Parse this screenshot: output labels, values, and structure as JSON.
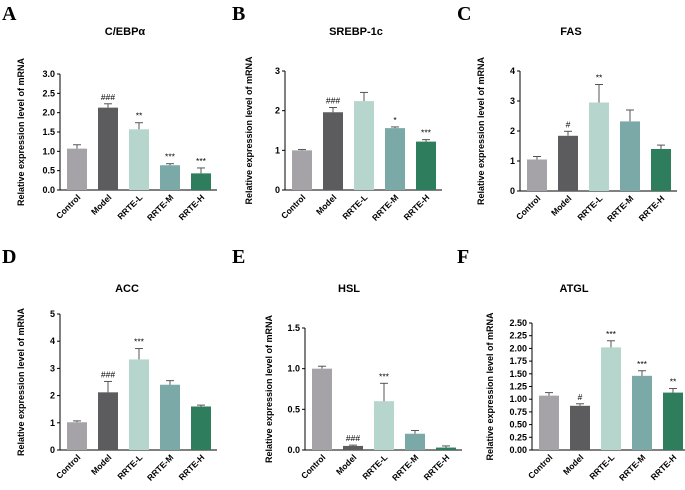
{
  "colors": {
    "bars": [
      "#a5a3a8",
      "#5c5c5e",
      "#b5d5cd",
      "#7aa9a8",
      "#2e7d5c"
    ],
    "axis": "#000000",
    "error": "#555555"
  },
  "chart_data": [
    {
      "type": "bar",
      "letter": "A",
      "title": "C/EBPα",
      "ylabel": "Relative expression level of mRNA",
      "categories": [
        "Control",
        "Model",
        "RRTE-L",
        "RRTE-M",
        "RRTE-H"
      ],
      "values": [
        1.07,
        2.13,
        1.57,
        0.64,
        0.43
      ],
      "errors": [
        0.1,
        0.1,
        0.17,
        0.04,
        0.14
      ],
      "annotations": [
        "",
        "###",
        "**",
        "***",
        "***"
      ],
      "ylim": [
        0,
        3.0
      ],
      "yticks": [
        "0.0",
        "0.5",
        "1.0",
        "1.5",
        "2.0",
        "2.5",
        "3.0"
      ]
    },
    {
      "type": "bar",
      "letter": "B",
      "title": "SREBP-1c",
      "ylabel": "Relative expression level of mRNA",
      "categories": [
        "Control",
        "Model",
        "RRTE-L",
        "RRTE-M",
        "RRTE-H"
      ],
      "values": [
        1.0,
        1.96,
        2.24,
        1.56,
        1.22
      ],
      "errors": [
        0.02,
        0.12,
        0.22,
        0.03,
        0.05
      ],
      "annotations": [
        "",
        "###",
        "",
        "*",
        "***"
      ],
      "ylim": [
        0,
        3
      ],
      "yticks": [
        "0",
        "1",
        "2",
        "3"
      ]
    },
    {
      "type": "bar",
      "letter": "C",
      "title": "FAS",
      "ylabel": "Relative expression level of mRNA",
      "categories": [
        "Control",
        "Model",
        "RRTE-L",
        "RRTE-M",
        "RRTE-H"
      ],
      "values": [
        1.05,
        1.84,
        2.95,
        2.32,
        1.4
      ],
      "errors": [
        0.1,
        0.15,
        0.6,
        0.38,
        0.13
      ],
      "annotations": [
        "",
        "#",
        "**",
        "",
        ""
      ],
      "ylim": [
        0,
        4
      ],
      "yticks": [
        "0",
        "1",
        "2",
        "3",
        "4"
      ]
    },
    {
      "type": "bar",
      "letter": "D",
      "title": "ACC",
      "ylabel": "Relative expression level of mRNA",
      "categories": [
        "Control",
        "Model",
        "RRTE-L",
        "RRTE-M",
        "RRTE-H"
      ],
      "values": [
        1.02,
        2.12,
        3.33,
        2.4,
        1.6
      ],
      "errors": [
        0.05,
        0.4,
        0.4,
        0.15,
        0.05
      ],
      "annotations": [
        "",
        "###",
        "***",
        "",
        ""
      ],
      "ylim": [
        0,
        5
      ],
      "yticks": [
        "0",
        "1",
        "2",
        "3",
        "4",
        "5"
      ]
    },
    {
      "type": "bar",
      "letter": "E",
      "title": "HSL",
      "ylabel": "Relative expression level of mRNA",
      "categories": [
        "Control",
        "Model",
        "RRTE-L",
        "RRTE-M",
        "RRTE-H"
      ],
      "values": [
        1.0,
        0.05,
        0.6,
        0.2,
        0.03
      ],
      "errors": [
        0.03,
        0.01,
        0.22,
        0.04,
        0.02
      ],
      "annotations": [
        "",
        "###",
        "***",
        "",
        ""
      ],
      "ylim": [
        0,
        1.5
      ],
      "yticks": [
        "0.0",
        "0.5",
        "1.0",
        "1.5"
      ]
    },
    {
      "type": "bar",
      "letter": "F",
      "title": "ATGL",
      "ylabel": "Relative expression level of mRNA",
      "categories": [
        "Control",
        "Model",
        "RRTE-L",
        "RRTE-M",
        "RRTE-H"
      ],
      "values": [
        1.07,
        0.87,
        2.02,
        1.46,
        1.13
      ],
      "errors": [
        0.06,
        0.04,
        0.13,
        0.1,
        0.08
      ],
      "annotations": [
        "",
        "#",
        "***",
        "***",
        "**"
      ],
      "ylim": [
        0,
        2.5
      ],
      "yticks": [
        "0.00",
        "0.25",
        "0.50",
        "0.75",
        "1.00",
        "1.25",
        "1.50",
        "1.75",
        "2.00",
        "2.25",
        "2.50"
      ]
    }
  ]
}
